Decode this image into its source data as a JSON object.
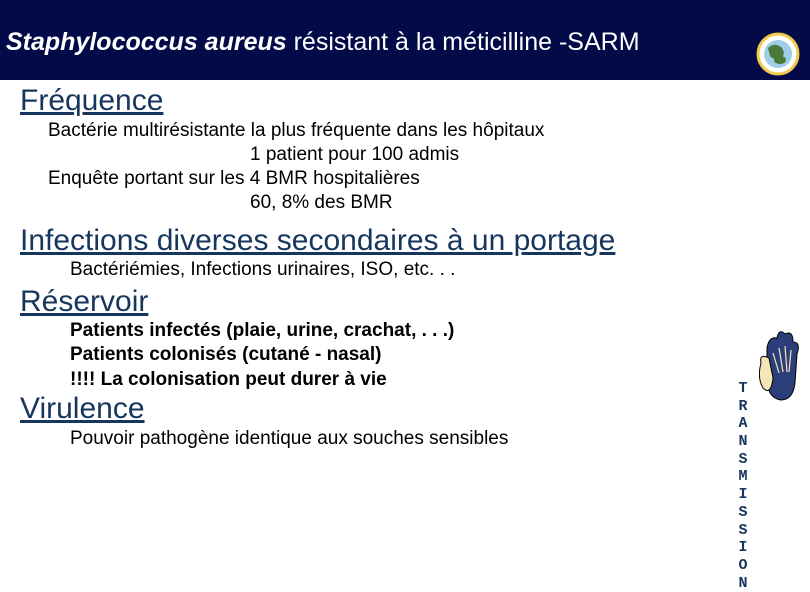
{
  "header": {
    "title_italic": "Staphylococcus aureus",
    "title_rest": " résistant à la méticilline -SARM"
  },
  "sections": {
    "frequence": {
      "heading": "Fréquence",
      "line1": "Bactérie multirésistante la plus fréquente dans les hôpitaux",
      "line2": "1 patient pour 100 admis",
      "line3": "Enquête portant sur les 4 BMR hospitalières",
      "line4": "60, 8% des BMR"
    },
    "infections": {
      "heading": "Infections diverses secondaires à un portage",
      "line1": "Bactériémies, Infections urinaires, ISO, etc. . ."
    },
    "reservoir": {
      "heading": "Réservoir",
      "line1": "Patients infectés (plaie, urine, crachat, . . .)",
      "line2": "Patients colonisés (cutané - nasal)",
      "line3": "!!!! La colonisation peut durer à vie"
    },
    "virulence": {
      "heading": "Virulence",
      "line1": "Pouvoir pathogène identique aux souches sensibles"
    }
  },
  "vertical_label": "TRANSMISSION",
  "colors": {
    "header_bg": "#020a47",
    "heading_color": "#17365d",
    "logo_ring": "#f2c94c",
    "hands_fill": "#2c3e7a"
  }
}
